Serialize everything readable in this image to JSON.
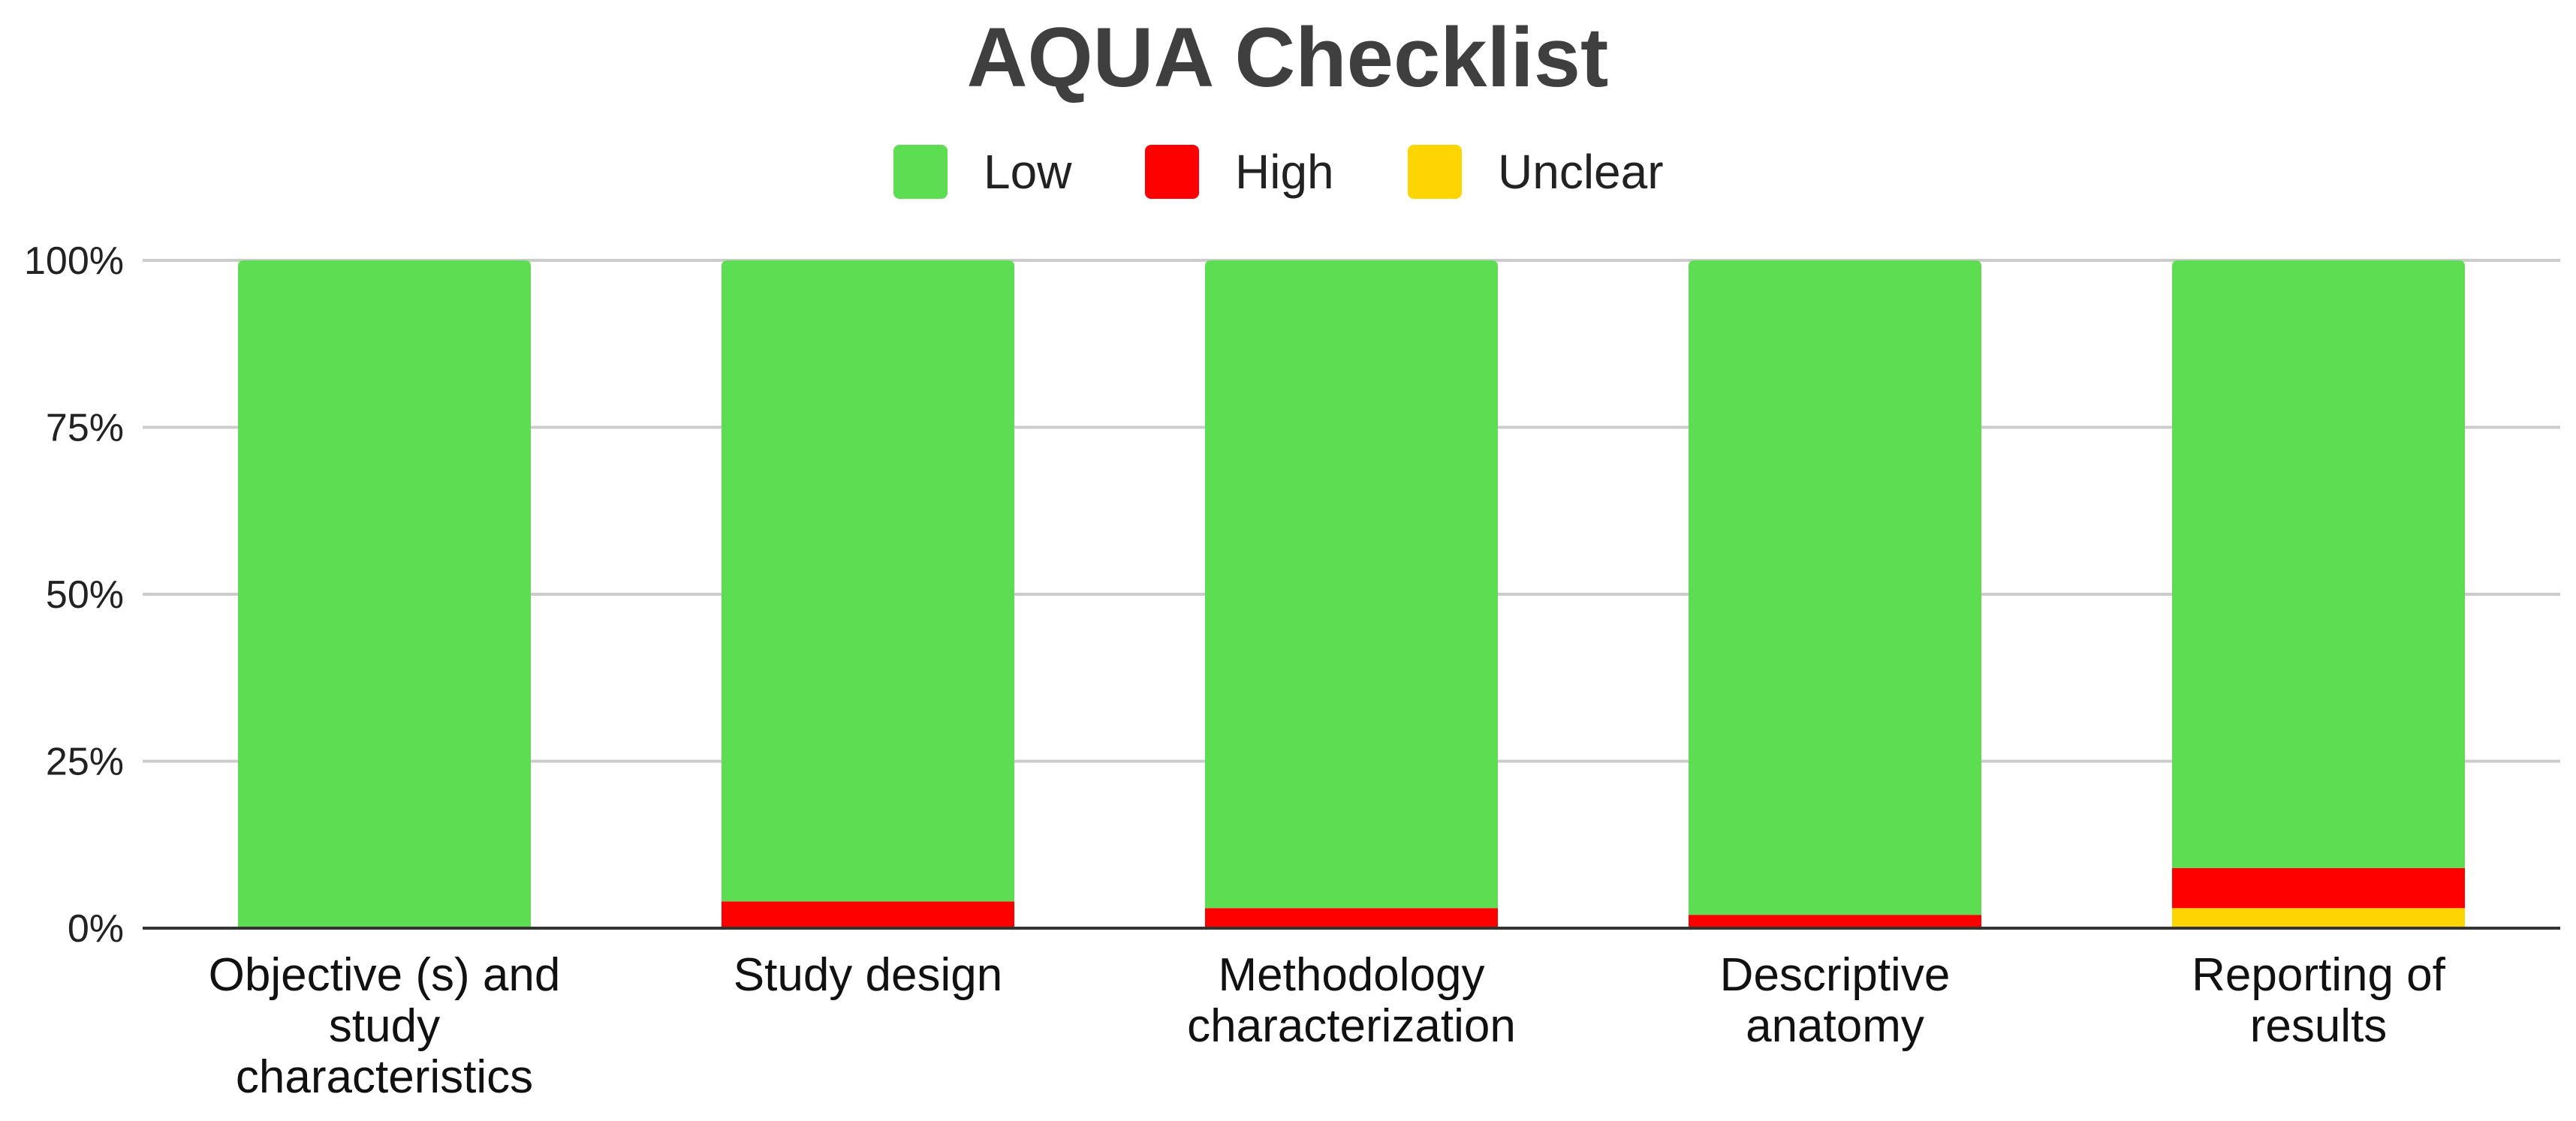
{
  "chart_data": {
    "type": "bar",
    "stacked": true,
    "percent": true,
    "title": "AQUA Checklist",
    "xlabel": "",
    "ylabel": "",
    "ylim": [
      0,
      100
    ],
    "yticks": [
      "0%",
      "25%",
      "50%",
      "75%",
      "100%"
    ],
    "yticks_values": [
      0,
      25,
      50,
      75,
      100
    ],
    "grid": true,
    "legend_position": "top",
    "categories": [
      [
        "Objective (s) and",
        "study",
        "characteristics"
      ],
      [
        "Study design"
      ],
      [
        "Methodology",
        "characterization"
      ],
      [
        "Descriptive",
        "anatomy"
      ],
      [
        "Reporting of",
        "results"
      ]
    ],
    "series": [
      {
        "name": "Unclear",
        "color": "#FFD500",
        "values": [
          0,
          0,
          0,
          0,
          3
        ]
      },
      {
        "name": "High",
        "color": "#FF0000",
        "values": [
          0,
          4,
          3,
          2,
          6
        ]
      },
      {
        "name": "Low",
        "color": "#5CDD52",
        "values": [
          100,
          96,
          97,
          98,
          91
        ]
      }
    ],
    "legend_order": [
      "Low",
      "High",
      "Unclear"
    ]
  }
}
